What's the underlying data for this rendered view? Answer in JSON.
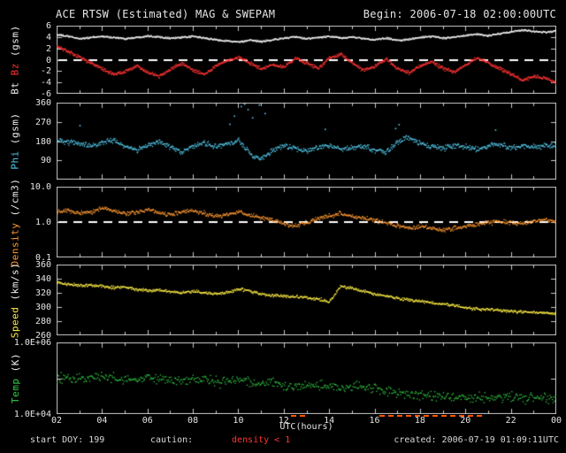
{
  "header": {
    "title": "ACE RTSW (Estimated) MAG & SWEPAM",
    "begin_label": "Begin: 2006-07-18 02:00:00UTC"
  },
  "footer": {
    "start_doy": "start DOY: 199",
    "caution_label": "caution:",
    "caution_value": "density < 1",
    "xaxis_label": "UTC(hours)",
    "created": "created: 2006-07-19 01:09:11UTC"
  },
  "colors": {
    "background": "#000000",
    "frame": "#c8c8c8",
    "text": "#e6e6e6",
    "bt": "#eeeeee",
    "bz": "#ff3333",
    "phi": "#55ccee",
    "density": "#ff9933",
    "speed": "#ffee44",
    "temp": "#33cc44",
    "caution_marker": "#ff5500",
    "dashed_line": "#ffffff"
  },
  "chart_data": {
    "type": "scatter",
    "title": "ACE RTSW (Estimated) MAG & SWEPAM",
    "begin": "2006-07-18 02:00:00UTC",
    "x_range": [
      2,
      24
    ],
    "x_tick_hours": [
      2,
      4,
      6,
      8,
      10,
      12,
      14,
      16,
      18,
      20,
      22,
      24
    ],
    "x_tick_labels": [
      "02",
      "04",
      "06",
      "08",
      "10",
      "12",
      "14",
      "16",
      "18",
      "20",
      "22",
      "00"
    ],
    "xlabel": "UTC(hours)",
    "x_hours": [
      2,
      2.5,
      3,
      3.5,
      4,
      4.5,
      5,
      5.5,
      6,
      6.5,
      7,
      7.5,
      8,
      8.5,
      9,
      9.5,
      10,
      10.5,
      11,
      11.5,
      12,
      12.5,
      13,
      13.5,
      14,
      14.5,
      15,
      15.5,
      16,
      16.5,
      17,
      17.5,
      18,
      18.5,
      19,
      19.5,
      20,
      20.5,
      21,
      21.5,
      22,
      22.5,
      23,
      23.5,
      24
    ],
    "caution_intervals_hours": [
      [
        12.3,
        13.0
      ],
      [
        16.2,
        20.9
      ]
    ],
    "panels": [
      {
        "name": "mag",
        "scale": "linear",
        "ylim": [
          -6,
          6
        ],
        "yticks": [
          6,
          4,
          2,
          0,
          -2,
          -4,
          -6
        ],
        "ytick_labels": [
          "6",
          "4",
          "2",
          "0",
          "-2",
          "-4",
          "-6"
        ],
        "dashed_line_at": 0,
        "ylabel_parts": [
          {
            "text": "Bt",
            "color": "#eeeeee"
          },
          {
            "text": "Bz",
            "color": "#ff3333"
          },
          {
            "text": "(gsm)",
            "color": "#eeeeee"
          }
        ],
        "series": [
          {
            "name": "Bt",
            "color": "#eeeeee",
            "noise": 0.22,
            "dot_step_hours": 0.02,
            "values": [
              4.5,
              4.2,
              3.8,
              4.0,
              4.2,
              4.0,
              3.8,
              4.0,
              4.3,
              4.1,
              3.9,
              4.0,
              4.2,
              3.9,
              3.6,
              3.4,
              3.2,
              3.5,
              3.3,
              3.6,
              3.9,
              4.1,
              3.8,
              4.0,
              4.2,
              3.9,
              4.1,
              3.8,
              3.6,
              3.9,
              3.5,
              3.7,
              4.0,
              4.2,
              3.9,
              4.1,
              4.4,
              4.6,
              4.3,
              4.7,
              5.0,
              5.3,
              5.1,
              4.9,
              5.2
            ]
          },
          {
            "name": "Bz",
            "color": "#ff3333",
            "noise": 0.45,
            "dot_step_hours": 0.02,
            "values": [
              2.5,
              1.5,
              0.5,
              -0.5,
              -1.5,
              -2.5,
              -2.0,
              -1.0,
              -2.2,
              -2.8,
              -1.5,
              -0.5,
              -1.8,
              -2.5,
              -1.0,
              0.0,
              0.5,
              -0.5,
              -1.5,
              -0.8,
              -1.2,
              0.3,
              -0.5,
              -1.5,
              0.5,
              1.0,
              -0.5,
              -1.8,
              -1.0,
              0.2,
              -1.5,
              -2.2,
              -1.0,
              -0.3,
              -1.5,
              -2.0,
              -0.8,
              0.5,
              -0.5,
              -1.5,
              -2.5,
              -3.5,
              -2.8,
              -3.2,
              -4.0
            ]
          }
        ]
      },
      {
        "name": "phi",
        "scale": "linear",
        "ylim": [
          0,
          360
        ],
        "yticks": [
          360,
          270,
          180,
          90
        ],
        "ytick_labels": [
          "360",
          "270",
          "180",
          "90"
        ],
        "dashed_line_at": null,
        "ylabel_parts": [
          {
            "text": "Phi",
            "color": "#55ccee"
          },
          {
            "text": "(gsm)",
            "color": "#eeeeee"
          }
        ],
        "series": [
          {
            "name": "Phi",
            "color": "#55ccee",
            "noise": 18,
            "dot_step_hours": 0.025,
            "values": [
              185,
              180,
              170,
              160,
              175,
              185,
              160,
              140,
              165,
              180,
              150,
              130,
              160,
              175,
              155,
              170,
              185,
              120,
              100,
              140,
              160,
              150,
              135,
              155,
              165,
              145,
              150,
              160,
              140,
              130,
              180,
              200,
              170,
              160,
              150,
              165,
              155,
              145,
              160,
              170,
              150,
              160,
              155,
              165,
              160
            ],
            "extra_points": [
              [
                3.0,
                255
              ],
              [
                9.6,
                262
              ],
              [
                9.8,
                300
              ],
              [
                10.1,
                345
              ],
              [
                10.25,
                358
              ],
              [
                10.4,
                330
              ],
              [
                10.6,
                292
              ],
              [
                10.9,
                352
              ],
              [
                11.15,
                312
              ],
              [
                13.8,
                238
              ],
              [
                16.9,
                242
              ],
              [
                17.05,
                260
              ],
              [
                21.3,
                235
              ]
            ]
          }
        ]
      },
      {
        "name": "density",
        "scale": "log",
        "ylim": [
          0.1,
          10
        ],
        "yticks": [
          10,
          1,
          0.1
        ],
        "ytick_labels": [
          "10.0",
          "1.0",
          "0.1"
        ],
        "dashed_line_at": 1,
        "ylabel_parts": [
          {
            "text": "Density",
            "color": "#ff9933"
          },
          {
            "text": "(/cm3)",
            "color": "#eeeeee"
          }
        ],
        "series": [
          {
            "name": "Density",
            "color": "#ff9933",
            "noise": 0.09,
            "dot_step_hours": 0.025,
            "values": [
              2.0,
              2.2,
              1.8,
              2.0,
              2.5,
              2.2,
              1.8,
              2.0,
              2.3,
              1.9,
              1.7,
              2.0,
              2.2,
              1.8,
              1.5,
              1.7,
              2.0,
              1.6,
              1.4,
              1.2,
              0.9,
              0.8,
              1.0,
              1.3,
              1.5,
              1.8,
              1.5,
              1.3,
              1.2,
              1.0,
              0.8,
              0.7,
              0.8,
              0.7,
              0.6,
              0.7,
              0.8,
              0.9,
              1.0,
              1.1,
              1.0,
              0.9,
              1.1,
              1.2,
              1.1
            ]
          }
        ]
      },
      {
        "name": "speed",
        "scale": "linear",
        "ylim": [
          260,
          360
        ],
        "yticks": [
          360,
          340,
          320,
          300,
          280,
          260
        ],
        "ytick_labels": [
          "360",
          "340",
          "320",
          "300",
          "280",
          "260"
        ],
        "dashed_line_at": null,
        "ylabel_parts": [
          {
            "text": "Speed",
            "color": "#ffee44"
          },
          {
            "text": "(km/s)",
            "color": "#eeeeee"
          }
        ],
        "series": [
          {
            "name": "Speed",
            "color": "#ffee44",
            "noise": 3.2,
            "dot_step_hours": 0.025,
            "values": [
              335,
              333,
              331,
              332,
              330,
              328,
              329,
              326,
              324,
              325,
              322,
              321,
              323,
              321,
              319,
              321,
              326,
              323,
              319,
              317,
              316,
              315,
              314,
              312,
              308,
              330,
              327,
              323,
              319,
              316,
              313,
              311,
              309,
              307,
              305,
              303,
              300,
              298,
              297,
              296,
              295,
              294,
              293,
              292,
              290
            ]
          }
        ]
      },
      {
        "name": "temp",
        "scale": "log",
        "ylim": [
          10000,
          1000000
        ],
        "yticks": [
          1000000,
          100000,
          10000
        ],
        "ytick_labels": [
          "1.0E+06",
          "",
          "1.0E+04"
        ],
        "dashed_line_at": null,
        "ylabel_parts": [
          {
            "text": "Temp",
            "color": "#33cc44"
          },
          {
            "text": "(K)",
            "color": "#eeeeee"
          }
        ],
        "series": [
          {
            "name": "Temp",
            "color": "#33cc44",
            "noise": 0.2,
            "dot_step_hours": 0.035,
            "values": [
              100000,
              110000,
              95000,
              105000,
              120000,
              100000,
              90000,
              95000,
              110000,
              105000,
              85000,
              90000,
              100000,
              95000,
              80000,
              85000,
              90000,
              80000,
              70000,
              75000,
              65000,
              60000,
              70000,
              65000,
              60000,
              55000,
              65000,
              60000,
              50000,
              45000,
              40000,
              38000,
              35000,
              33000,
              30000,
              32000,
              30000,
              28000,
              30000,
              32000,
              30000,
              28000,
              30000,
              32000,
              30000
            ]
          }
        ]
      }
    ]
  }
}
